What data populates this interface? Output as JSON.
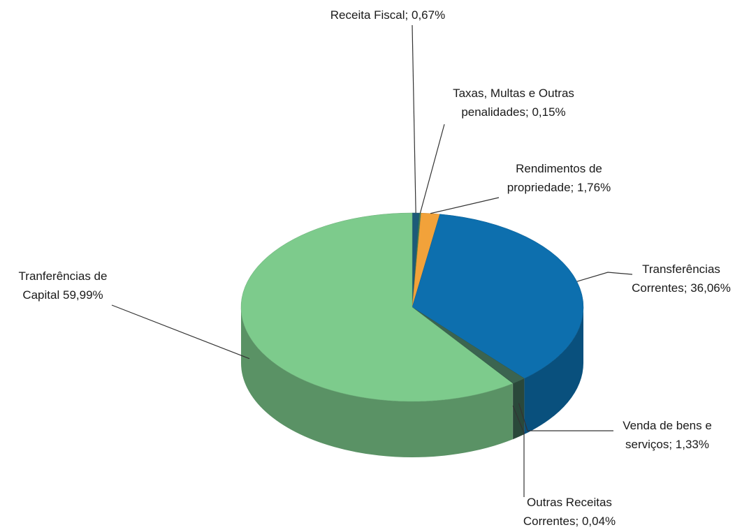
{
  "chart_data": {
    "type": "pie3d",
    "categories": [
      "Receita Fiscal;",
      "Taxas, Multas e Outras penalidades;",
      "Rendimentos de propriedade;",
      "Transferências Correntes;",
      "Venda de bens e serviços;",
      "Outras Receitas Correntes;",
      "Tranferências de Capital"
    ],
    "values": [
      0.67,
      0.15,
      1.76,
      36.06,
      1.33,
      0.04,
      59.99
    ],
    "value_labels": [
      "0,67%",
      "0,15%",
      "1,76%",
      "36,06%",
      "1,33%",
      "0,04%",
      "59,99%"
    ],
    "colors": [
      "#1d5a78",
      "#3d7d5a",
      "#f2a23a",
      "#0d6fae",
      "#3b6450",
      "#2f5a45",
      "#7dcb8c"
    ]
  }
}
